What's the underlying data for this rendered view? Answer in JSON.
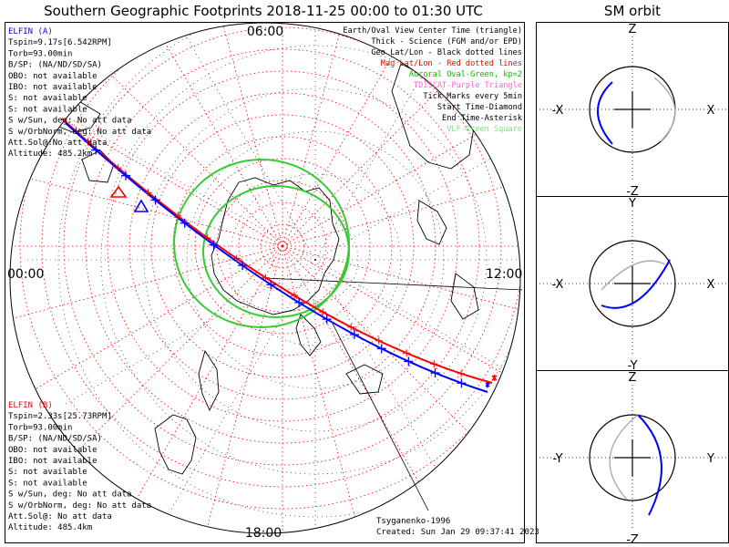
{
  "title": "Southern Geographic Footprints 2018-11-25 00:00 to 01:30 UTC",
  "orbit_title": "SM orbit",
  "clock_labels": {
    "top": "06:00",
    "left": "00:00",
    "right": "12:00",
    "bottom": "18:00"
  },
  "sat_a": {
    "name": "ELFIN (A)",
    "color": "#0000ff",
    "lines": [
      "Tspin=9.17s[6.542RPM]",
      "Torb=93.00min",
      "B/SP: (NA/ND/SD/SA)",
      "OBO: not available",
      "IBO: not available",
      "S: not available",
      "S: not available",
      "S w/Sun, deg: No att data",
      "S w/OrbNorm, deg: No att data",
      "Att.Sol@:No att data",
      "Altitude: 485.2km"
    ]
  },
  "sat_b": {
    "name": "ELFIN (B)",
    "color": "#ff0000",
    "lines": [
      "Tspin=2.33s[25.73RPM]",
      "Torb=93.00min",
      "B/SP: (NA/ND/SD/SA)",
      "OBO: not available",
      "IBO: not available",
      "S: not available",
      "S: not available",
      "S w/Sun, deg: No att data",
      "S w/OrbNorm, deg: No att data",
      "Att.Sol@: No att data",
      "Altitude: 485.4km"
    ]
  },
  "legend": [
    {
      "text": "Earth/Oval View Center Time (triangle)",
      "color": "#000000"
    },
    {
      "text": "Thick - Science (FGM and/or EPD)",
      "color": "#000000"
    },
    {
      "text": "Geo Lat/Lon - Black dotted lines",
      "color": "#000000"
    },
    {
      "text": "Mag Lat/Lon - Red dotted lines",
      "color": "#ff0000"
    },
    {
      "text": "Auroral Oval-Green, kp=2",
      "color": "#00c000"
    },
    {
      "text": "TDISCAT-Purple Triangle",
      "color": "#ff66cc"
    },
    {
      "text": "Tick Marks every 5min",
      "color": "#000000"
    },
    {
      "text": "Start Time-Diamond",
      "color": "#000000"
    },
    {
      "text": "End Time-Asterisk",
      "color": "#000000"
    },
    {
      "text": "VLF-Green Square",
      "color": "#80e080"
    }
  ],
  "footer": {
    "model": "Tsyganenko-1996",
    "created": "Created: Sun Jan 29 09:37:41 2023"
  },
  "orbit_panels": [
    {
      "top": "Z",
      "bottom": "-Z",
      "left": "-X",
      "right": "X"
    },
    {
      "top": "Y",
      "bottom": "-Y",
      "left": "-X",
      "right": "X"
    },
    {
      "top": "Z",
      "bottom": "-Z",
      "left": "-Y",
      "right": "Y"
    }
  ],
  "colors": {
    "elfin_a": "#0000ff",
    "elfin_b": "#ff0000",
    "auroral_oval": "#33cc33",
    "mag_grid": "#ff0000",
    "orbit_shadow": "#aaaaaa"
  },
  "chart_data": {
    "type": "polar-map",
    "hemisphere": "south",
    "series": [
      {
        "name": "ELFIN (A)",
        "ticks_every_min": 5
      },
      {
        "name": "ELFIN (B)",
        "ticks_every_min": 5
      }
    ],
    "auroral_oval": {
      "kp": 2
    },
    "mag_local_time_labels": [
      "00:00",
      "06:00",
      "12:00",
      "18:00"
    ]
  }
}
